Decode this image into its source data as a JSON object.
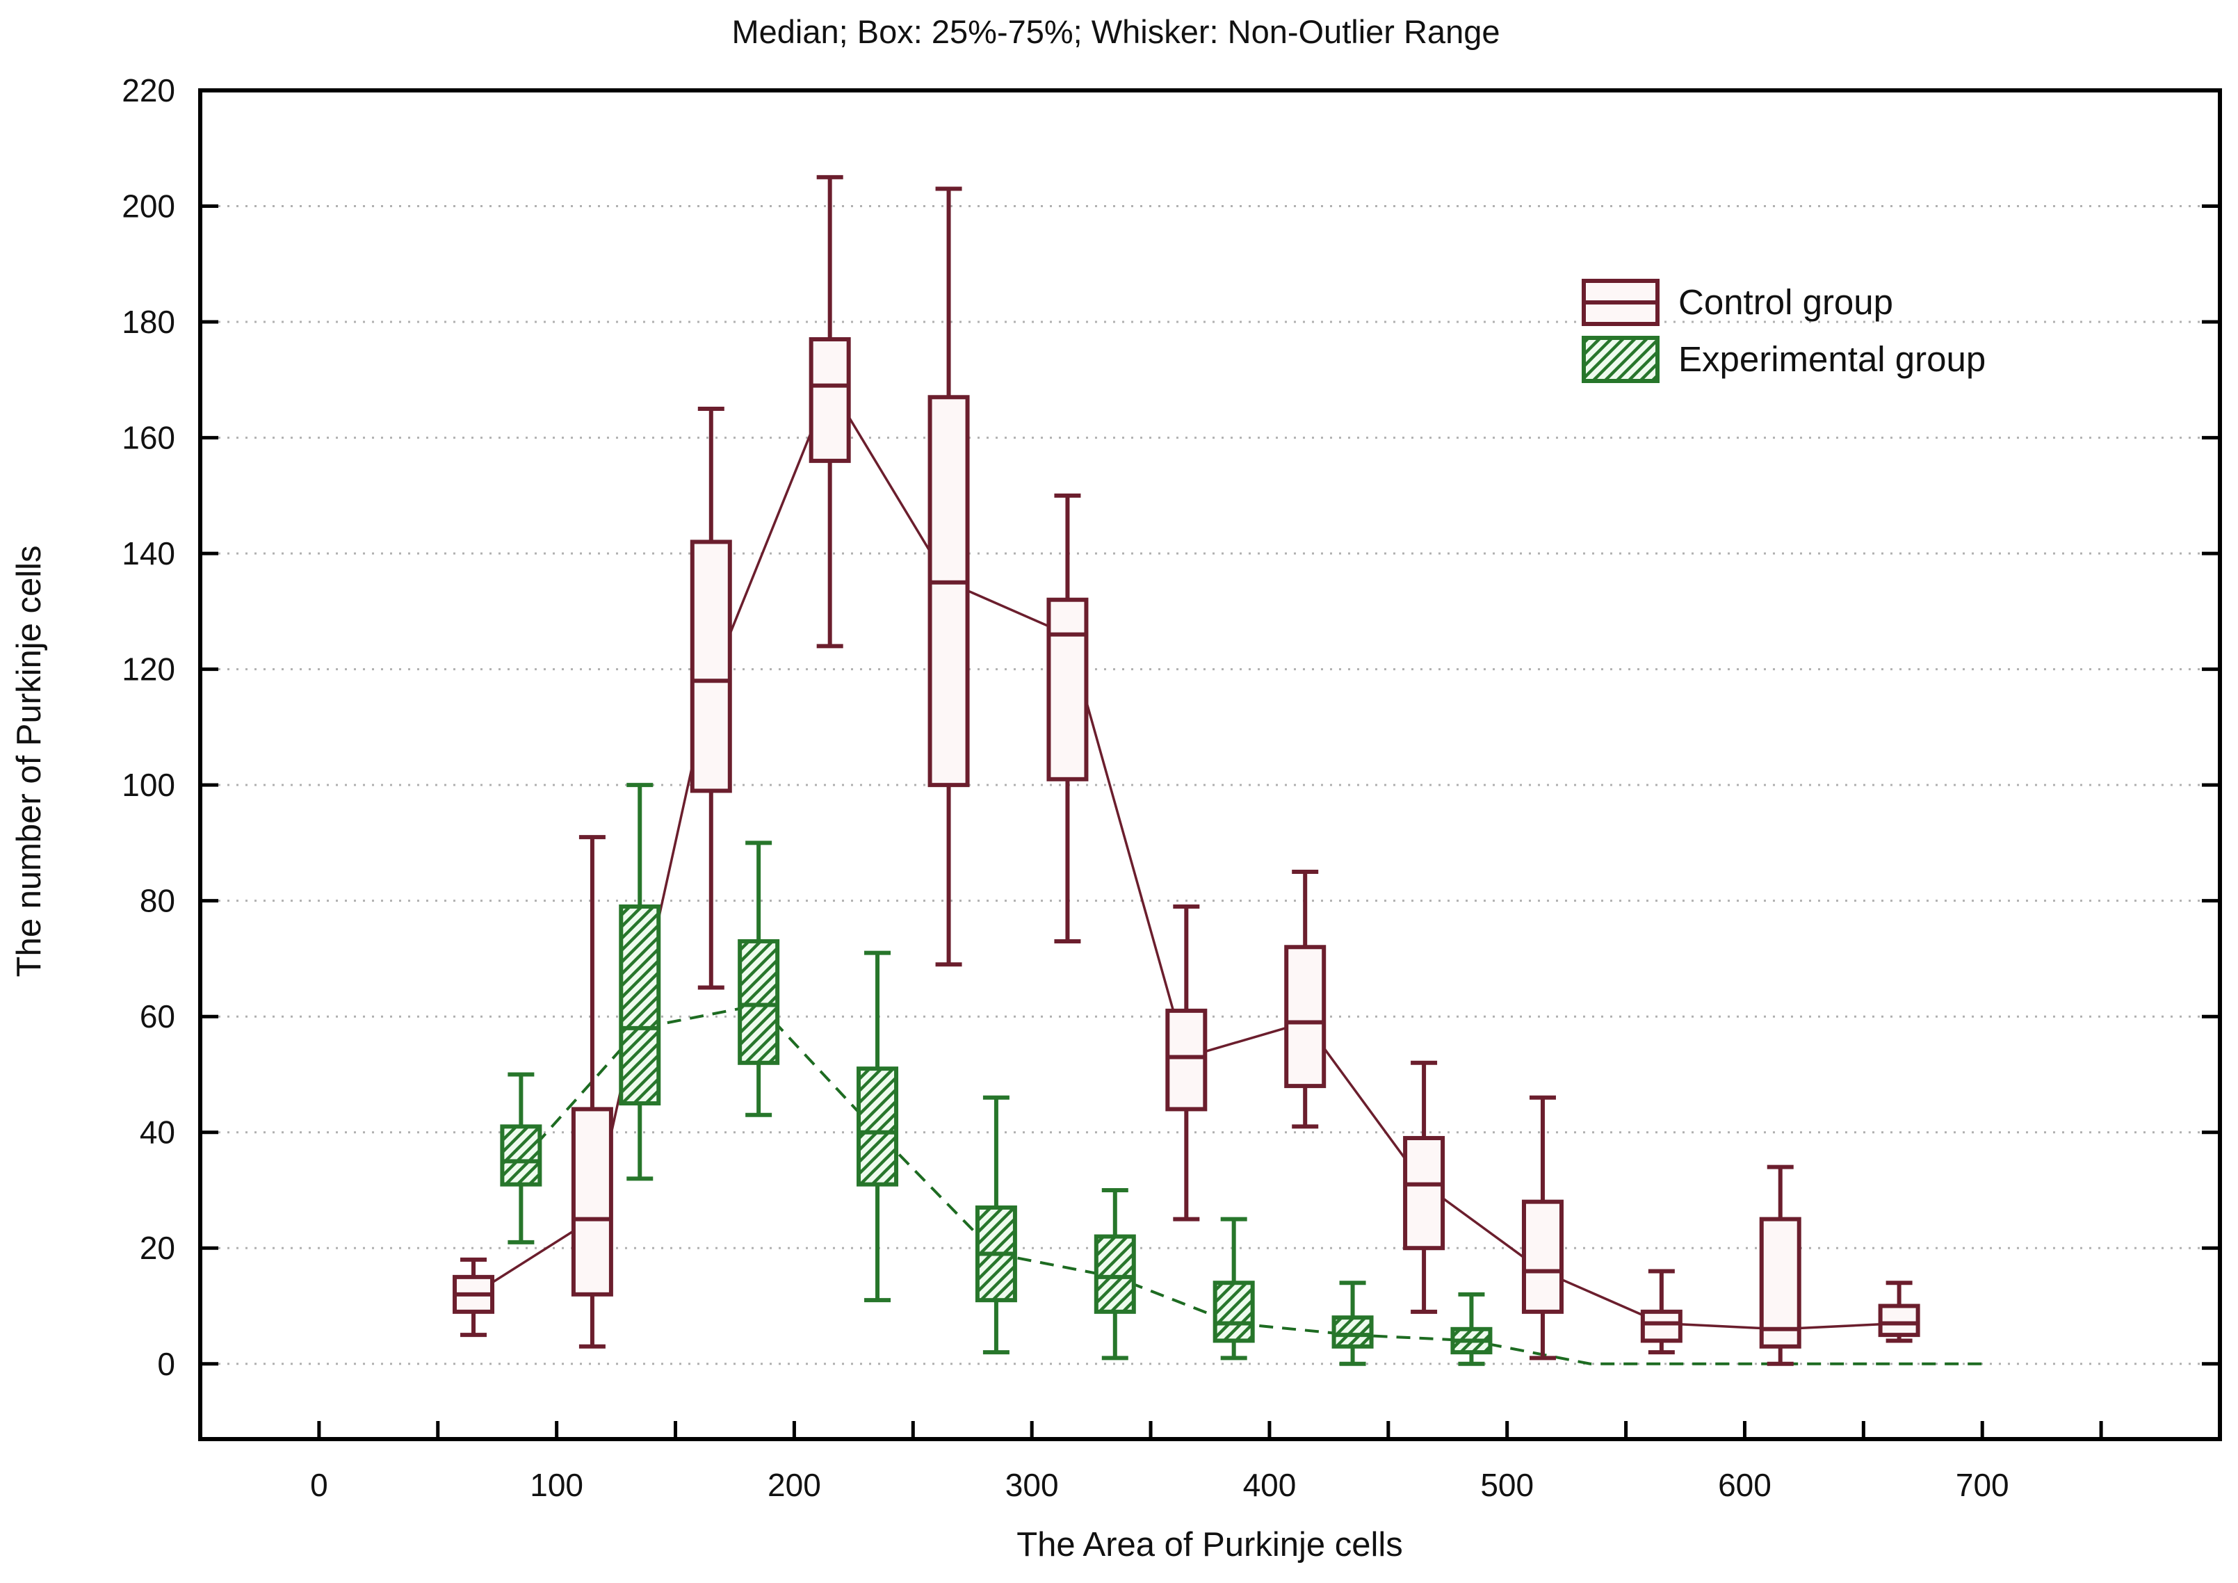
{
  "chart_data": {
    "type": "boxplot",
    "title": "Median; Box: 25%-75%; Whisker: Non-Outlier Range",
    "xlabel": "The Area of Purkinje cells",
    "ylabel": "The number of Purkinje cells",
    "xlim": [
      -50,
      800
    ],
    "ylim": [
      -13,
      220
    ],
    "x_major_ticks": [
      0,
      100,
      200,
      300,
      400,
      500,
      600,
      700
    ],
    "x_minor_tick_step": 50,
    "x_minor_tick_range": [
      0,
      750
    ],
    "y_ticks": [
      0,
      20,
      40,
      60,
      80,
      100,
      120,
      140,
      160,
      180,
      200,
      220
    ],
    "grid": "horizontal-dotted",
    "grid_color": "#b0b0b0",
    "frame_color": "#000000",
    "legend_position": "upper-right-inside",
    "legend": [
      {
        "label": "Control group",
        "swatch": "open-box-with-median",
        "color": "#6b1e2d"
      },
      {
        "label": "Experimental group",
        "swatch": "hatched-box",
        "color": "#27762b"
      }
    ],
    "series": [
      {
        "name": "Control group",
        "box_style": "open",
        "stroke": "#6b1e2d",
        "fill": "#fdf7f7",
        "connector": "solid",
        "boxes": [
          {
            "x": 65,
            "low": 5,
            "q1": 9,
            "median": 12,
            "q3": 15,
            "high": 18
          },
          {
            "x": 115,
            "low": 3,
            "q1": 12,
            "median": 25,
            "q3": 44,
            "high": 91
          },
          {
            "x": 165,
            "low": 65,
            "q1": 99,
            "median": 118,
            "q3": 142,
            "high": 165
          },
          {
            "x": 215,
            "low": 124,
            "q1": 156,
            "median": 169,
            "q3": 177,
            "high": 205
          },
          {
            "x": 265,
            "low": 69,
            "q1": 100,
            "median": 135,
            "q3": 167,
            "high": 203
          },
          {
            "x": 315,
            "low": 73,
            "q1": 101,
            "median": 126,
            "q3": 132,
            "high": 150
          },
          {
            "x": 365,
            "low": 25,
            "q1": 44,
            "median": 53,
            "q3": 61,
            "high": 79
          },
          {
            "x": 415,
            "low": 41,
            "q1": 48,
            "median": 59,
            "q3": 72,
            "high": 85
          },
          {
            "x": 465,
            "low": 9,
            "q1": 20,
            "median": 31,
            "q3": 39,
            "high": 52
          },
          {
            "x": 515,
            "low": 1,
            "q1": 9,
            "median": 16,
            "q3": 28,
            "high": 46
          },
          {
            "x": 565,
            "low": 2,
            "q1": 4,
            "median": 7,
            "q3": 9,
            "high": 16
          },
          {
            "x": 615,
            "low": 0,
            "q1": 3,
            "median": 6,
            "q3": 25,
            "high": 34
          },
          {
            "x": 665,
            "low": 4,
            "q1": 5,
            "median": 7,
            "q3": 10,
            "high": 14
          }
        ]
      },
      {
        "name": "Experimental group",
        "box_style": "hatched",
        "stroke": "#27762b",
        "fill": "#eefbee",
        "connector": "dashed",
        "boxes": [
          {
            "x": 85,
            "low": 21,
            "q1": 31,
            "median": 35,
            "q3": 41,
            "high": 50
          },
          {
            "x": 135,
            "low": 32,
            "q1": 45,
            "median": 58,
            "q3": 79,
            "high": 100
          },
          {
            "x": 185,
            "low": 43,
            "q1": 52,
            "median": 62,
            "q3": 73,
            "high": 90
          },
          {
            "x": 235,
            "low": 11,
            "q1": 31,
            "median": 40,
            "q3": 51,
            "high": 71
          },
          {
            "x": 285,
            "low": 2,
            "q1": 11,
            "median": 19,
            "q3": 27,
            "high": 46
          },
          {
            "x": 335,
            "low": 1,
            "q1": 9,
            "median": 15,
            "q3": 22,
            "high": 30
          },
          {
            "x": 385,
            "low": 1,
            "q1": 4,
            "median": 7,
            "q3": 14,
            "high": 25
          },
          {
            "x": 435,
            "low": 0,
            "q1": 3,
            "median": 5,
            "q3": 8,
            "high": 14
          },
          {
            "x": 485,
            "low": 0,
            "q1": 2,
            "median": 4,
            "q3": 6,
            "high": 12
          }
        ],
        "connector_tail": [
          [
            535,
            0
          ],
          [
            585,
            0
          ],
          [
            635,
            0
          ],
          [
            700,
            0
          ]
        ]
      }
    ]
  }
}
